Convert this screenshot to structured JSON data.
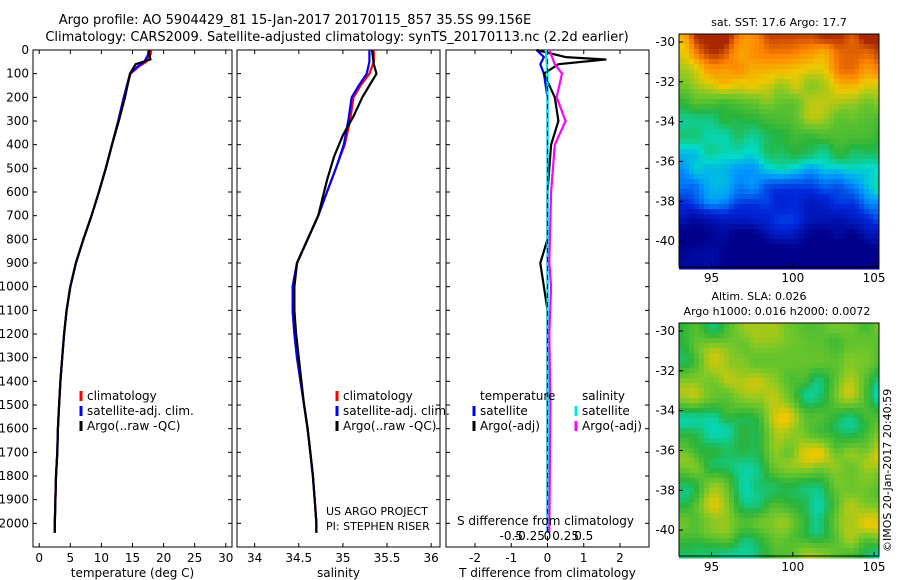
{
  "header": {
    "title_line1": "Argo profile: AO 5904429_81 15-Jan-2017 20170115_857 35.5S 99.156E",
    "title_line2": "Climatology: CARS2009. Satellite-adjusted climatology: synTS_20170113.nc (2.2d earlier)"
  },
  "colors": {
    "climatology": "#ff0000",
    "satellite": "#0000ff",
    "argo": "#000000",
    "sal_satellite": "#00e5e5",
    "sal_argo": "#ff00ff"
  },
  "chart_data": [
    {
      "id": "temperature",
      "type": "line",
      "xlabel": "temperature (deg C)",
      "ylabel": "",
      "xlim": [
        -1,
        31
      ],
      "ylim": [
        2100,
        0
      ],
      "xticks": [
        0,
        5,
        10,
        15,
        20,
        25,
        30
      ],
      "yticks": [
        0,
        100,
        200,
        300,
        400,
        500,
        600,
        700,
        800,
        900,
        1000,
        1100,
        1200,
        1300,
        1400,
        1500,
        1600,
        1700,
        1800,
        1900,
        2000
      ],
      "legend": [
        "climatology",
        "satellite-adj. clim.",
        "Argo(..raw -QC)"
      ],
      "series": [
        {
          "name": "climatology",
          "color": "#ff0000",
          "points": [
            [
              18,
              0
            ],
            [
              17.9,
              20
            ],
            [
              17.2,
              50
            ],
            [
              16,
              70
            ],
            [
              14.7,
              100
            ],
            [
              13.6,
              200
            ],
            [
              12.7,
              300
            ],
            [
              11.7,
              400
            ],
            [
              10.7,
              500
            ],
            [
              9.6,
              600
            ],
            [
              8.4,
              700
            ],
            [
              7.1,
              800
            ],
            [
              5.9,
              900
            ],
            [
              5.0,
              1000
            ],
            [
              4.4,
              1100
            ],
            [
              4.0,
              1200
            ],
            [
              3.7,
              1300
            ],
            [
              3.4,
              1400
            ],
            [
              3.2,
              1500
            ],
            [
              3.0,
              1600
            ],
            [
              2.9,
              1700
            ],
            [
              2.7,
              1800
            ],
            [
              2.6,
              1900
            ],
            [
              2.5,
              2000
            ],
            [
              2.5,
              2040
            ]
          ]
        },
        {
          "name": "satellite-adj. clim.",
          "color": "#0000ff",
          "points": [
            [
              17.6,
              0
            ],
            [
              17.5,
              20
            ],
            [
              16.9,
              50
            ],
            [
              15.8,
              70
            ],
            [
              14.6,
              100
            ],
            [
              13.6,
              200
            ],
            [
              12.7,
              300
            ],
            [
              11.7,
              400
            ],
            [
              10.7,
              500
            ],
            [
              9.6,
              600
            ],
            [
              8.4,
              700
            ],
            [
              7.1,
              800
            ],
            [
              5.9,
              900
            ],
            [
              5.0,
              1000
            ],
            [
              4.4,
              1100
            ],
            [
              4.0,
              1200
            ],
            [
              3.7,
              1300
            ],
            [
              3.4,
              1400
            ],
            [
              3.2,
              1500
            ],
            [
              3.0,
              1600
            ],
            [
              2.9,
              1700
            ],
            [
              2.7,
              1800
            ],
            [
              2.6,
              1900
            ],
            [
              2.5,
              2000
            ],
            [
              2.5,
              2040
            ]
          ]
        },
        {
          "name": "Argo(..raw -QC)",
          "color": "#000000",
          "points": [
            [
              17.7,
              0
            ],
            [
              17.7,
              20
            ],
            [
              17.9,
              40
            ],
            [
              15.5,
              60
            ],
            [
              14.6,
              100
            ],
            [
              13.8,
              200
            ],
            [
              12.8,
              300
            ],
            [
              11.7,
              400
            ],
            [
              10.7,
              500
            ],
            [
              9.6,
              600
            ],
            [
              8.4,
              700
            ],
            [
              7.1,
              800
            ],
            [
              5.9,
              900
            ],
            [
              5.0,
              1000
            ],
            [
              4.4,
              1100
            ],
            [
              4.0,
              1200
            ],
            [
              3.7,
              1300
            ],
            [
              3.4,
              1400
            ],
            [
              3.2,
              1500
            ],
            [
              3.0,
              1600
            ],
            [
              2.9,
              1700
            ],
            [
              2.7,
              1800
            ],
            [
              2.6,
              1900
            ],
            [
              2.5,
              2000
            ],
            [
              2.5,
              2040
            ]
          ]
        }
      ]
    },
    {
      "id": "salinity",
      "type": "line",
      "xlabel": "salinity",
      "xlim": [
        33.8,
        36.1
      ],
      "ylim": [
        2100,
        0
      ],
      "xticks": [
        34,
        34.5,
        35,
        35.5,
        36
      ],
      "legend": [
        "climatology",
        "satellite-adj. clim.",
        "Argo(..raw -QC)"
      ],
      "series": [
        {
          "name": "climatology",
          "color": "#ff0000",
          "points": [
            [
              35.35,
              0
            ],
            [
              35.35,
              50
            ],
            [
              35.3,
              100
            ],
            [
              35.2,
              150
            ],
            [
              35.12,
              200
            ],
            [
              35.08,
              300
            ],
            [
              35.02,
              400
            ],
            [
              34.92,
              500
            ],
            [
              34.82,
              600
            ],
            [
              34.72,
              700
            ],
            [
              34.6,
              800
            ],
            [
              34.48,
              900
            ],
            [
              34.43,
              1000
            ],
            [
              34.43,
              1100
            ],
            [
              34.45,
              1200
            ],
            [
              34.48,
              1300
            ],
            [
              34.52,
              1400
            ],
            [
              34.56,
              1500
            ],
            [
              34.6,
              1600
            ],
            [
              34.63,
              1700
            ],
            [
              34.66,
              1800
            ],
            [
              34.68,
              1900
            ],
            [
              34.7,
              2000
            ],
            [
              34.7,
              2040
            ]
          ]
        },
        {
          "name": "satellite-adj. clim.",
          "color": "#0000ff",
          "points": [
            [
              35.3,
              0
            ],
            [
              35.3,
              50
            ],
            [
              35.27,
              100
            ],
            [
              35.18,
              150
            ],
            [
              35.1,
              200
            ],
            [
              35.06,
              300
            ],
            [
              35.01,
              400
            ],
            [
              34.92,
              500
            ],
            [
              34.82,
              600
            ],
            [
              34.72,
              700
            ],
            [
              34.6,
              800
            ],
            [
              34.48,
              900
            ],
            [
              34.43,
              1000
            ],
            [
              34.43,
              1100
            ],
            [
              34.45,
              1200
            ],
            [
              34.48,
              1300
            ],
            [
              34.52,
              1400
            ],
            [
              34.56,
              1500
            ],
            [
              34.6,
              1600
            ],
            [
              34.63,
              1700
            ],
            [
              34.66,
              1800
            ],
            [
              34.68,
              1900
            ],
            [
              34.7,
              2000
            ],
            [
              34.7,
              2040
            ]
          ]
        },
        {
          "name": "Argo(..raw -QC)",
          "color": "#000000",
          "points": [
            [
              35.33,
              0
            ],
            [
              35.35,
              60
            ],
            [
              35.38,
              100
            ],
            [
              35.3,
              150
            ],
            [
              35.22,
              200
            ],
            [
              35.12,
              280
            ],
            [
              35.0,
              360
            ],
            [
              34.9,
              450
            ],
            [
              34.82,
              550
            ],
            [
              34.72,
              700
            ],
            [
              34.6,
              800
            ],
            [
              34.48,
              900
            ],
            [
              34.45,
              1000
            ],
            [
              34.45,
              1100
            ],
            [
              34.47,
              1200
            ],
            [
              34.5,
              1300
            ],
            [
              34.53,
              1400
            ],
            [
              34.56,
              1500
            ],
            [
              34.6,
              1600
            ],
            [
              34.63,
              1700
            ],
            [
              34.66,
              1800
            ],
            [
              34.68,
              1900
            ],
            [
              34.7,
              2000
            ],
            [
              34.7,
              2040
            ]
          ]
        }
      ]
    },
    {
      "id": "difference",
      "type": "line",
      "xlabel": "T difference from climatology",
      "top_xlabel": "S difference from climatology",
      "xlim": [
        -2.8,
        2.8
      ],
      "ylim": [
        2100,
        0
      ],
      "xticks": [
        -2,
        -1,
        0,
        1,
        2
      ],
      "top_xticks": [
        "-0.5",
        "-0.25",
        "0",
        "0.25",
        "0.5"
      ],
      "legend_groups": [
        {
          "title": "temperature",
          "items": [
            "satellite",
            "Argo(-adj)"
          ]
        },
        {
          "title": "salinity",
          "items": [
            "satellite",
            "Argo(-adj)"
          ]
        }
      ],
      "series": [
        {
          "name": "temperature satellite",
          "color": "#0000ff",
          "points": [
            [
              -0.3,
              0
            ],
            [
              -0.1,
              30
            ],
            [
              -0.2,
              60
            ],
            [
              -0.1,
              100
            ],
            [
              0,
              200
            ],
            [
              0,
              400
            ],
            [
              0,
              2040
            ]
          ]
        },
        {
          "name": "temperature Argo(-adj)",
          "color": "#000000",
          "points": [
            [
              -0.3,
              0
            ],
            [
              0.5,
              30
            ],
            [
              1.6,
              40
            ],
            [
              0.3,
              60
            ],
            [
              -0.1,
              100
            ],
            [
              0.2,
              200
            ],
            [
              0.3,
              300
            ],
            [
              0.1,
              400
            ],
            [
              0,
              600
            ],
            [
              0,
              800
            ],
            [
              -0.2,
              900
            ],
            [
              -0.1,
              1000
            ],
            [
              0,
              1100
            ],
            [
              0,
              2040
            ]
          ]
        },
        {
          "name": "salinity satellite",
          "color": "#00e5e5",
          "points": [
            [
              -0.05,
              0
            ],
            [
              -0.02,
              60
            ],
            [
              0,
              100
            ],
            [
              0,
              300
            ],
            [
              0,
              2040
            ]
          ]
        },
        {
          "name": "salinity Argo(-adj)",
          "color": "#ff00ff",
          "points": [
            [
              0.05,
              0
            ],
            [
              0.2,
              60
            ],
            [
              0.4,
              100
            ],
            [
              0.25,
              200
            ],
            [
              0.5,
              300
            ],
            [
              0.2,
              400
            ],
            [
              0.1,
              600
            ],
            [
              0.05,
              900
            ],
            [
              0.1,
              1000
            ],
            [
              0.05,
              1200
            ],
            [
              0.08,
              1500
            ],
            [
              0.05,
              2040
            ]
          ]
        }
      ]
    }
  ],
  "notes": {
    "project": "US ARGO PROJECT",
    "pi": "PI: STEPHEN RISER",
    "stamp": "©IMOS 20-Jan-2017 20:40:59"
  },
  "maps": [
    {
      "id": "sst-map",
      "title": "sat. SST: 17.6  Argo: 17.7",
      "xticks": [
        95,
        100,
        105
      ],
      "yticks": [
        -30,
        -32,
        -34,
        -36,
        -38,
        -40
      ],
      "type": "heatmap-sst"
    },
    {
      "id": "sla-map",
      "title_line1": "Altim. SLA: 0.026",
      "title_line2": "Argo h1000: 0.016  h2000: 0.0072",
      "xticks": [
        95,
        100,
        105
      ],
      "yticks": [
        -30,
        -32,
        -34,
        -36,
        -38,
        -40
      ],
      "type": "heatmap-sla"
    }
  ]
}
